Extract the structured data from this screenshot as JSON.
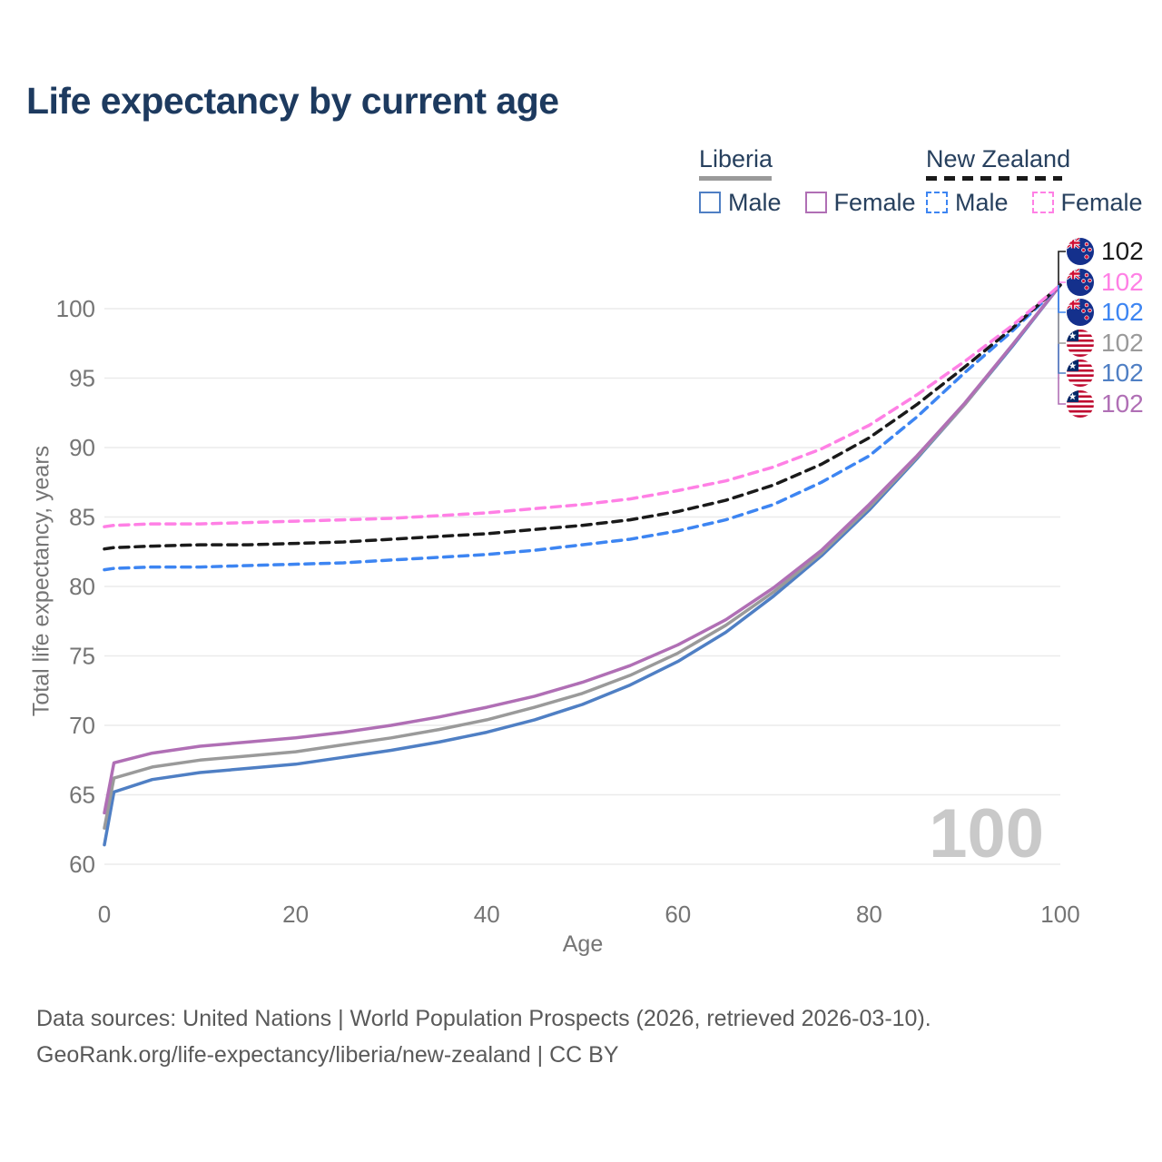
{
  "title": "Life expectancy by current age",
  "colors": {
    "title_text": "#1d3a5f",
    "axis_text": "#757575",
    "grid": "#ebebeb",
    "watermark": "#c9c9c9",
    "footer_text": "#595959",
    "legend_text": "#27405e"
  },
  "legend": {
    "groups": [
      {
        "country": "Liberia",
        "line_style": "solid",
        "underline_color": "#9a9a9a",
        "items": [
          {
            "label": "Male",
            "color": "#4f7fc4"
          },
          {
            "label": "Female",
            "color": "#b06fb5"
          }
        ]
      },
      {
        "country": "New Zealand",
        "line_style": "dashed",
        "underline_color": "#1a1a1a",
        "items": [
          {
            "label": "Male",
            "color": "#3d85f2"
          },
          {
            "label": "Female",
            "color": "#ff80e5"
          }
        ]
      }
    ]
  },
  "end_labels": {
    "items": [
      {
        "flag": "nz",
        "value": "102",
        "color": "#1a1a1a"
      },
      {
        "flag": "nz",
        "value": "102",
        "color": "#ff80e5"
      },
      {
        "flag": "nz",
        "value": "102",
        "color": "#3d85f2"
      },
      {
        "flag": "lr",
        "value": "102",
        "color": "#9a9a9a"
      },
      {
        "flag": "lr",
        "value": "102",
        "color": "#4f7fc4"
      },
      {
        "flag": "lr",
        "value": "102",
        "color": "#b06fb5"
      }
    ]
  },
  "watermark": "100",
  "chart_data": {
    "type": "line",
    "title": "Life expectancy by current age",
    "xlabel": "Age",
    "ylabel": "Total life expectancy, years",
    "xlim": [
      0,
      100
    ],
    "ylim": [
      60,
      102
    ],
    "x_ticks": [
      0,
      20,
      40,
      60,
      80,
      100
    ],
    "y_ticks": [
      60,
      65,
      70,
      75,
      80,
      85,
      90,
      95,
      100
    ],
    "grid": "horizontal",
    "legend_position": "top-right",
    "x": [
      0,
      1,
      5,
      10,
      15,
      20,
      25,
      30,
      35,
      40,
      45,
      50,
      55,
      60,
      65,
      70,
      75,
      80,
      85,
      90,
      95,
      100
    ],
    "series": [
      {
        "name": "Liberia Male",
        "country": "Liberia",
        "sex": "Male",
        "style": "solid",
        "color": "#4f7fc4",
        "values": [
          61.4,
          65.2,
          66.1,
          66.6,
          66.9,
          67.2,
          67.7,
          68.2,
          68.8,
          69.5,
          70.4,
          71.5,
          72.9,
          74.6,
          76.7,
          79.3,
          82.2,
          85.5,
          89.2,
          93.1,
          97.3,
          101.7
        ]
      },
      {
        "name": "Liberia Total",
        "country": "Liberia",
        "sex": "Both",
        "style": "solid",
        "color": "#9a9a9a",
        "values": [
          62.6,
          66.2,
          67.0,
          67.5,
          67.8,
          68.1,
          68.6,
          69.1,
          69.7,
          70.4,
          71.3,
          72.3,
          73.6,
          75.2,
          77.2,
          79.6,
          82.4,
          85.7,
          89.3,
          93.1,
          97.4,
          101.7
        ]
      },
      {
        "name": "Liberia Female",
        "country": "Liberia",
        "sex": "Female",
        "style": "solid",
        "color": "#b06fb5",
        "values": [
          63.7,
          67.3,
          68.0,
          68.5,
          68.8,
          69.1,
          69.5,
          70.0,
          70.6,
          71.3,
          72.1,
          73.1,
          74.3,
          75.8,
          77.6,
          79.9,
          82.6,
          85.9,
          89.4,
          93.2,
          97.4,
          101.7
        ]
      },
      {
        "name": "New Zealand Male",
        "country": "New Zealand",
        "sex": "Male",
        "style": "dashed",
        "color": "#3d85f2",
        "values": [
          81.2,
          81.3,
          81.4,
          81.4,
          81.5,
          81.6,
          81.7,
          81.9,
          82.1,
          82.3,
          82.6,
          83.0,
          83.4,
          84.0,
          84.8,
          85.9,
          87.5,
          89.4,
          92.2,
          95.4,
          98.4,
          101.7
        ]
      },
      {
        "name": "New Zealand Total",
        "country": "New Zealand",
        "sex": "Both",
        "style": "dashed",
        "color": "#1a1a1a",
        "values": [
          82.7,
          82.8,
          82.9,
          83.0,
          83.0,
          83.1,
          83.2,
          83.4,
          83.6,
          83.8,
          84.1,
          84.4,
          84.8,
          85.4,
          86.2,
          87.3,
          88.8,
          90.7,
          93.1,
          95.8,
          98.6,
          101.7
        ]
      },
      {
        "name": "New Zealand Female",
        "country": "New Zealand",
        "sex": "Female",
        "style": "dashed",
        "color": "#ff80e5",
        "values": [
          84.3,
          84.4,
          84.5,
          84.5,
          84.6,
          84.7,
          84.8,
          84.9,
          85.1,
          85.3,
          85.6,
          85.9,
          86.3,
          86.9,
          87.6,
          88.6,
          89.9,
          91.6,
          93.8,
          96.2,
          98.8,
          101.7
        ]
      }
    ]
  },
  "footer": {
    "line1": "Data sources: United Nations | World Population Prospects (2026, retrieved 2026-03-10).",
    "line2": "GeoRank.org/life-expectancy/liberia/new-zealand | CC BY"
  }
}
